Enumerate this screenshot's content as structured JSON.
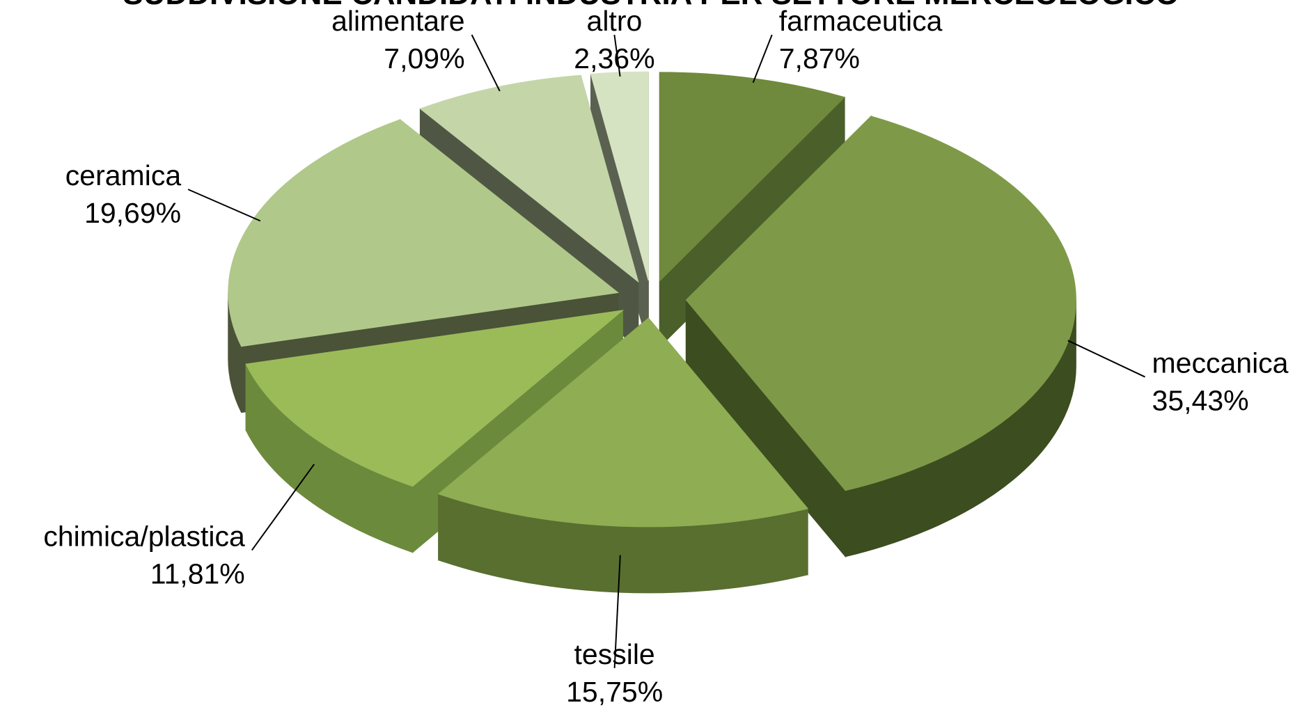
{
  "chart_data": {
    "type": "pie",
    "title": "SUDDIVISIONE CANDIDATI INDUSTRIA PER SETTORE MERCEOLOGICO",
    "slices": [
      {
        "label": "farmaceutica",
        "value": 7.87,
        "value_label": "7,87%",
        "top_color": "#6f8a3c",
        "side_color": "#4b5f2a"
      },
      {
        "label": "meccanica",
        "value": 35.43,
        "value_label": "35,43%",
        "top_color": "#7e9a49",
        "side_color": "#3c4d20"
      },
      {
        "label": "tessile",
        "value": 15.75,
        "value_label": "15,75%",
        "top_color": "#8fad53",
        "side_color": "#586f30"
      },
      {
        "label": "chimica/plastica",
        "value": 11.81,
        "value_label": "11,81%",
        "top_color": "#9bbb59",
        "side_color": "#6c8a3c"
      },
      {
        "label": "ceramica",
        "value": 19.69,
        "value_label": "19,69%",
        "top_color": "#b0c98a",
        "side_color": "#4a5238"
      },
      {
        "label": "alimentare",
        "value": 7.09,
        "value_label": "7,09%",
        "top_color": "#c4d6a8",
        "side_color": "#4f5744"
      },
      {
        "label": "altro",
        "value": 2.36,
        "value_label": "2,36%",
        "top_color": "#d6e3c3",
        "side_color": "#5a6150"
      }
    ],
    "legend": "none",
    "data_labels": "outside with leader lines"
  }
}
